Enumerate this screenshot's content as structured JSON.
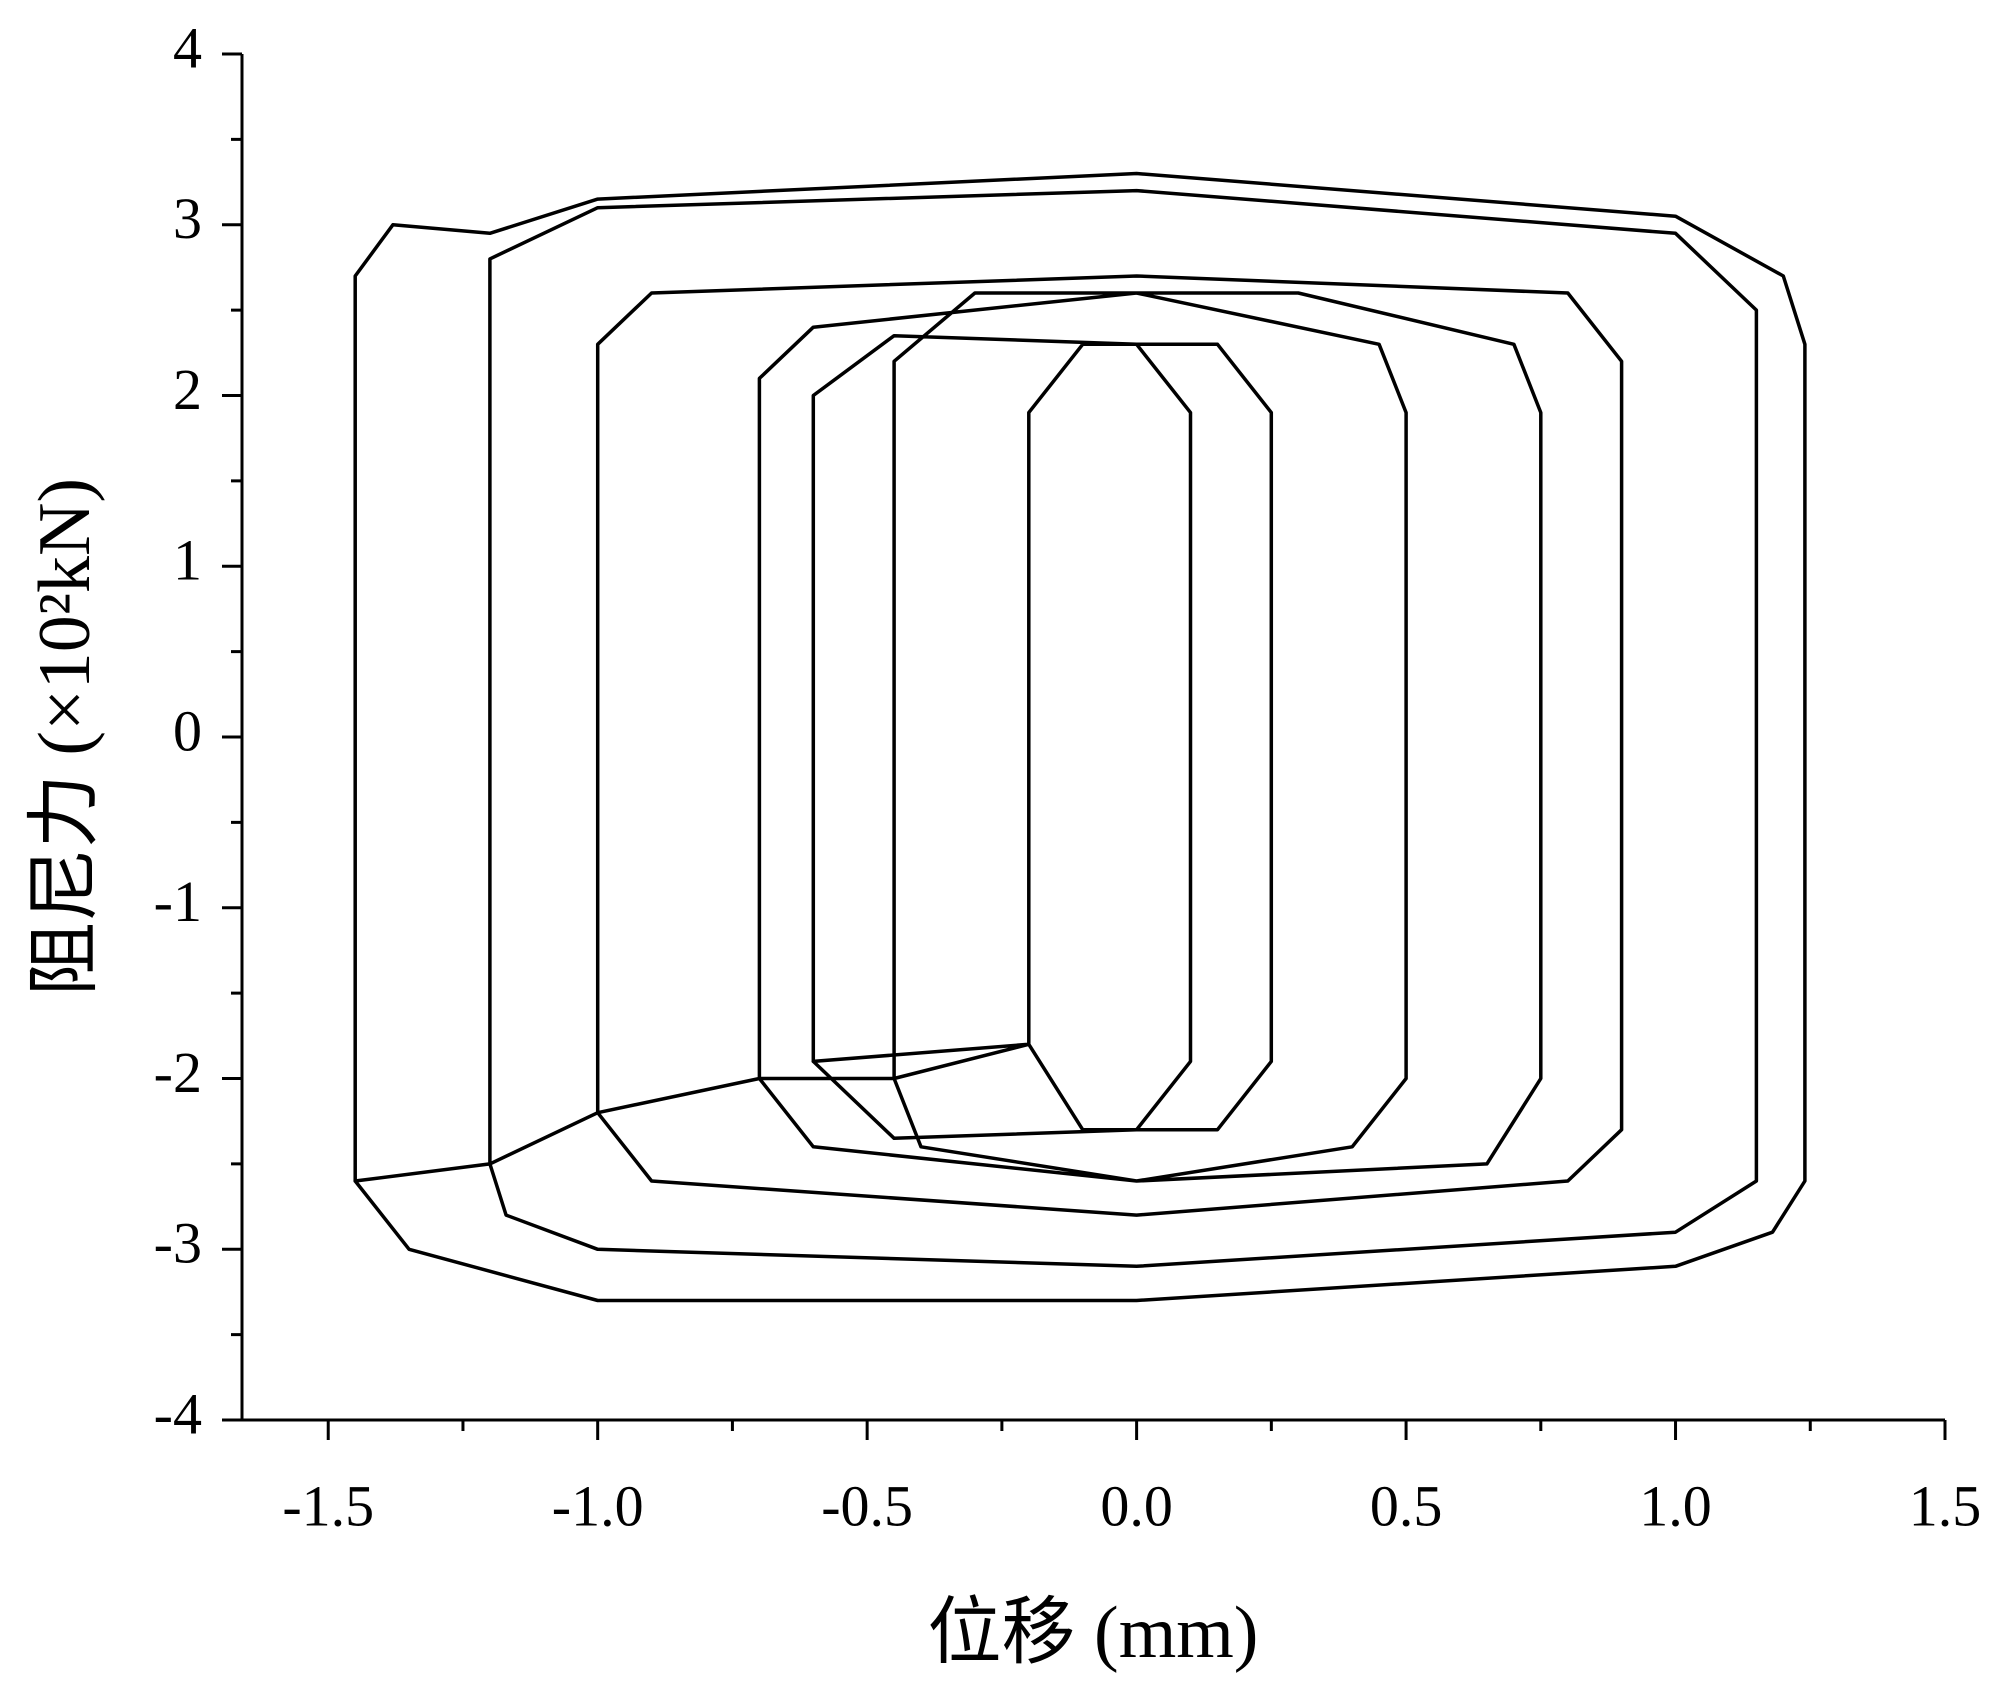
{
  "chart_data": {
    "type": "line",
    "x_label": "位移 (mm)",
    "y_label": "阻尼力 (×10²kN)",
    "xlim": [
      -1.66,
      1.5
    ],
    "ylim": [
      -4,
      4
    ],
    "xticks": [
      -1.5,
      {
        "value": -1,
        "label": "-1.0"
      },
      -0.5,
      {
        "value": 0,
        "label": "0.0"
      },
      0.5,
      {
        "value": 1,
        "label": "1.0"
      },
      1.5
    ],
    "yticks": [
      -4,
      -3,
      -2,
      -1,
      0,
      1,
      2,
      3,
      4
    ],
    "series": [
      {
        "color": "#000000",
        "x": [
          -1.45,
          -1.45,
          -1.38,
          -1.2,
          -1.0,
          0,
          1.0,
          1.2,
          1.24,
          1.24,
          1.18,
          1.0,
          0,
          -1.0,
          -1.35,
          -1.45,
          -1.2,
          -1.2,
          -1.0,
          0,
          1.0,
          1.15,
          1.15,
          1.0,
          0,
          -1.0,
          -1.17,
          -1.2,
          -1.0,
          -1.0,
          -0.9,
          0,
          0.8,
          0.9,
          0.9,
          0.8,
          0,
          -0.9,
          -1.0,
          -0.7,
          -0.7,
          -0.6,
          0,
          0.45,
          0.5,
          0.5,
          0.4,
          0,
          -0.6,
          -0.7,
          -0.45,
          -0.45,
          -0.3,
          0.3,
          0.7,
          0.75,
          0.75,
          0.65,
          0,
          -0.4,
          -0.45,
          -0.2,
          -0.2,
          -0.1,
          0.15,
          0.25,
          0.25,
          0.15,
          -0.1,
          -0.2,
          -0.6,
          -0.6,
          -0.45,
          0,
          0.1,
          0.1,
          0,
          -0.45,
          -0.6
        ],
        "values": [
          -2.6,
          2.7,
          3.0,
          2.95,
          3.15,
          3.3,
          3.05,
          2.7,
          2.3,
          -2.6,
          -2.9,
          -3.1,
          -3.3,
          -3.3,
          -3.0,
          -2.6,
          -2.5,
          2.8,
          3.1,
          3.2,
          2.95,
          2.5,
          -2.6,
          -2.9,
          -3.1,
          -3.0,
          -2.8,
          -2.5,
          -2.2,
          2.3,
          2.6,
          2.7,
          2.6,
          2.2,
          -2.3,
          -2.6,
          -2.8,
          -2.6,
          -2.2,
          -2.0,
          2.1,
          2.4,
          2.6,
          2.3,
          1.9,
          -2.0,
          -2.4,
          -2.6,
          -2.4,
          -2.0,
          -2.0,
          2.2,
          2.6,
          2.6,
          2.3,
          1.9,
          -2.0,
          -2.5,
          -2.6,
          -2.4,
          -2.0,
          -1.8,
          1.9,
          2.3,
          2.3,
          1.9,
          -1.9,
          -2.3,
          -2.3,
          -1.8,
          -1.9,
          2.0,
          2.35,
          2.3,
          1.9,
          -1.9,
          -2.3,
          -2.35,
          -1.9
        ]
      }
    ]
  }
}
